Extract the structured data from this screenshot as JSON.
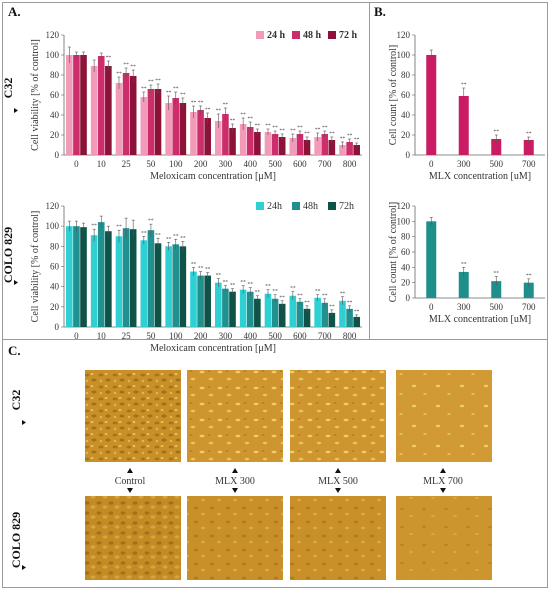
{
  "panels": {
    "a_letter": "A.",
    "b_letter": "B.",
    "c_letter": "C.",
    "row_c32": "C32",
    "row_colo": "COLO 829"
  },
  "colors": {
    "c32_24": "#f39ab8",
    "c32_48": "#cc2e6b",
    "c32_72": "#8c1238",
    "colo_24": "#2fd0d4",
    "colo_48": "#21918f",
    "colo_72": "#0f5248",
    "b_c32": "#c91c62",
    "b_colo": "#1f8f8c",
    "micro_bg": "#cf9529",
    "border": "#9a9a9a"
  },
  "chart_data": [
    {
      "id": "A-C32",
      "type": "bar",
      "categories": [
        "0",
        "10",
        "25",
        "50",
        "100",
        "200",
        "300",
        "400",
        "500",
        "600",
        "700",
        "800"
      ],
      "series": [
        {
          "name": "24 h",
          "values": [
            100,
            89,
            72,
            58,
            52,
            43,
            34,
            31,
            23,
            17,
            18,
            10
          ],
          "err": [
            8,
            6,
            6,
            5,
            7,
            6,
            7,
            6,
            3,
            4,
            4,
            3
          ],
          "sig": [
            "",
            "",
            "**",
            "**",
            "**",
            "**",
            "**",
            "**",
            "**",
            "**",
            "**",
            "**"
          ]
        },
        {
          "name": "48 h",
          "values": [
            100,
            99,
            82,
            66,
            57,
            45,
            41,
            28,
            21,
            21,
            21,
            13
          ],
          "err": [
            3,
            3,
            5,
            4,
            6,
            4,
            6,
            5,
            3,
            3,
            3,
            3
          ],
          "sig": [
            "",
            "",
            "**",
            "**",
            "**",
            "**",
            "**",
            "**",
            "**",
            "**",
            "**",
            "**"
          ]
        },
        {
          "name": "72 h",
          "values": [
            100,
            89,
            79,
            66,
            52,
            37,
            27,
            23,
            18,
            15,
            15,
            10
          ],
          "err": [
            3,
            5,
            6,
            5,
            5,
            5,
            4,
            3,
            3,
            3,
            3,
            2
          ],
          "sig": [
            "",
            "**",
            "**",
            "**",
            "**",
            "**",
            "**",
            "**",
            "**",
            "**",
            "**",
            "**"
          ]
        }
      ],
      "xlabel": "Meloxicam concentration [μM]",
      "ylabel": "Cell viability [% of control]",
      "ylim": [
        0,
        120
      ],
      "yticks": [
        "0",
        "20",
        "40",
        "60",
        "80",
        "100",
        "120"
      ],
      "legend": "top-right"
    },
    {
      "id": "A-COLO",
      "type": "bar",
      "categories": [
        "0",
        "10",
        "25",
        "50",
        "100",
        "200",
        "300",
        "400",
        "500",
        "600",
        "700",
        "800"
      ],
      "series": [
        {
          "name": "24h",
          "values": [
            100,
            91,
            90,
            86,
            80,
            55,
            44,
            37,
            33,
            31,
            29,
            26
          ],
          "err": [
            5,
            6,
            6,
            4,
            4,
            4,
            4,
            4,
            4,
            4,
            3,
            4
          ],
          "sig": [
            "",
            "**",
            "**",
            "**",
            "**",
            "**",
            "**",
            "**",
            "**",
            "**",
            "**",
            "**"
          ]
        },
        {
          "name": "48h",
          "values": [
            100,
            104,
            98,
            96,
            82,
            51,
            38,
            35,
            28,
            25,
            24,
            18
          ],
          "err": [
            5,
            6,
            10,
            6,
            5,
            4,
            3,
            4,
            4,
            3,
            4,
            3
          ],
          "sig": [
            "",
            "",
            "",
            "**",
            "**",
            "**",
            "**",
            "**",
            "**",
            "**",
            "**",
            "**"
          ]
        },
        {
          "name": "72h",
          "values": [
            99,
            95,
            97,
            83,
            80,
            51,
            35,
            28,
            23,
            18,
            14,
            10
          ],
          "err": [
            4,
            5,
            9,
            5,
            5,
            3,
            3,
            3,
            3,
            3,
            3,
            2
          ],
          "sig": [
            "",
            "",
            "",
            "**",
            "**",
            "**",
            "**",
            "**",
            "**",
            "**",
            "**",
            "**"
          ]
        }
      ],
      "xlabel": "Meloxicam concentration [μM]",
      "ylabel": "Cell viability [% of control]",
      "ylim": [
        0,
        120
      ],
      "yticks": [
        "0",
        "20",
        "40",
        "60",
        "80",
        "100",
        "120"
      ],
      "legend": "top-right"
    },
    {
      "id": "B-C32",
      "type": "bar",
      "categories": [
        "0",
        "300",
        "500",
        "700"
      ],
      "values": [
        100,
        59,
        16,
        15
      ],
      "err": [
        5,
        8,
        4,
        3
      ],
      "sig": [
        "",
        "**",
        "**",
        "**"
      ],
      "xlabel": "MLX concentration [uM]",
      "ylabel": "Cell count [% of control]",
      "ylim": [
        0,
        120
      ],
      "yticks": [
        "0",
        "20",
        "40",
        "60",
        "80",
        "100",
        "120"
      ]
    },
    {
      "id": "B-COLO",
      "type": "bar",
      "categories": [
        "0",
        "300",
        "500",
        "700"
      ],
      "values": [
        100,
        34,
        22,
        20
      ],
      "err": [
        5,
        6,
        6,
        5
      ],
      "sig": [
        "",
        "**",
        "**",
        "**"
      ],
      "xlabel": "MLX concentration [uM]",
      "ylabel": "Cell count [% of control]",
      "ylim": [
        0,
        120
      ],
      "yticks": [
        "0",
        "20",
        "40",
        "60",
        "80",
        "100",
        "120"
      ]
    }
  ],
  "micrographs": {
    "labels": [
      "Control",
      "MLX 300",
      "MLX 500",
      "MLX 700"
    ]
  }
}
